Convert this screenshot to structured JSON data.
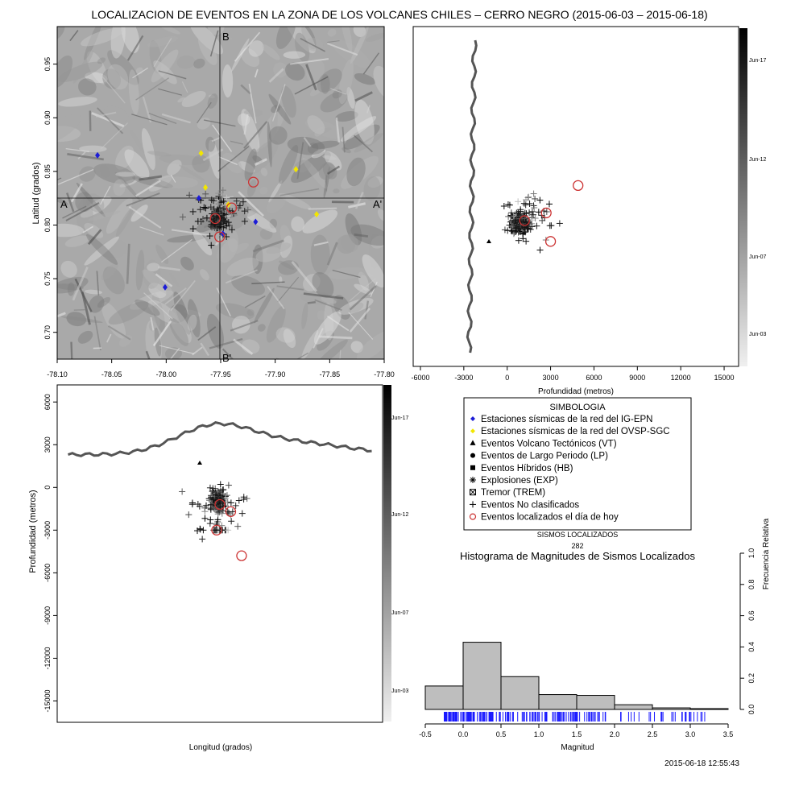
{
  "title": "LOCALIZACION DE EVENTOS EN LA ZONA DE LOS VOLCANES CHILES – CERRO NEGRO (2015-06-03 – 2015-06-18)",
  "timestamp": "2015-06-18 12:55:43",
  "colors": {
    "ig_epn": "#1c1cd6",
    "ovsp_sgc": "#f2e600",
    "today": "#cc3333",
    "hist_fill": "#bebebe",
    "rug": "#1a1aff",
    "terrain": "#7a7a7a"
  },
  "map": {
    "ylabel": "Latitud (grados)",
    "xticks": [
      "-78.10",
      "-78.05",
      "-78.00",
      "-77.95",
      "-77.90",
      "-77.85",
      "-77.80"
    ],
    "yticks": [
      "0.70",
      "0.75",
      "0.80",
      "0.85",
      "0.90",
      "0.95"
    ],
    "section_labels": {
      "a": "A",
      "a_prime": "A'",
      "b": "B",
      "b_prime": "B'"
    },
    "xlim": [
      -78.1,
      -77.8
    ],
    "ylim": [
      0.675,
      0.985
    ]
  },
  "depth_panel": {
    "xlabel": "Profundidad (metros)",
    "xticks": [
      "-6000",
      "-3000",
      "0",
      "3000",
      "6000",
      "9000",
      "12000",
      "15000"
    ],
    "xlim": [
      -6500,
      16000
    ],
    "colorbar_ticks": [
      "Jun-17",
      "Jun-12",
      "Jun-07",
      "Jun-03"
    ]
  },
  "section_panel": {
    "xlabel": "Longitud (grados)",
    "ylabel": "Profundidad (metros)",
    "yticks": [
      "6000",
      "3000",
      "0",
      "-3000",
      "-6000",
      "-9000",
      "-12000",
      "-15000"
    ],
    "ylim": [
      -16500,
      7200
    ],
    "colorbar_ticks": [
      "Jun-17",
      "Jun-12",
      "Jun-07",
      "Jun-03"
    ]
  },
  "legend": {
    "title": "SIMBOLOGIA",
    "items": [
      {
        "label": "Estaciones sísmicas de la red del IG-EPN",
        "symbol": "diamond-blue-icon"
      },
      {
        "label": "Estaciones sísmicas de la red del OVSP-SGC",
        "symbol": "diamond-yellow-icon"
      },
      {
        "label": "Eventos Volcano Tectónicos (VT)",
        "symbol": "triangle-icon"
      },
      {
        "label": "Eventos de Largo Periodo (LP)",
        "symbol": "circle-icon"
      },
      {
        "label": "Eventos Híbridos (HB)",
        "symbol": "square-icon"
      },
      {
        "label": "Explosiones (EXP)",
        "symbol": "asterisk-icon"
      },
      {
        "label": "Tremor (TREM)",
        "symbol": "boxed-cross-icon"
      },
      {
        "label": "Eventos No clasificados",
        "symbol": "plus-icon"
      },
      {
        "label": "Eventos localizados el día de hoy",
        "symbol": "red-ring-icon"
      }
    ]
  },
  "counter": {
    "label": "SISMOS LOCALIZADOS",
    "value": "282"
  },
  "chart_data": [
    {
      "type": "scatter",
      "name": "epicenter-map",
      "ylabel": "Latitud (grados)",
      "xlim": [
        -78.1,
        -77.8
      ],
      "ylim": [
        0.675,
        0.985
      ],
      "stations_ig_epn": [
        [
          -78.063,
          0.865
        ],
        [
          -77.97,
          0.825
        ],
        [
          -77.948,
          0.792
        ],
        [
          -77.918,
          0.803
        ],
        [
          -78.001,
          0.742
        ]
      ],
      "stations_ovsp_sgc": [
        [
          -77.968,
          0.867
        ],
        [
          -77.881,
          0.852
        ],
        [
          -77.862,
          0.81
        ],
        [
          -77.964,
          0.835
        ],
        [
          -77.943,
          0.819
        ]
      ],
      "events_today": [
        [
          -77.92,
          0.84
        ],
        [
          -77.955,
          0.806
        ],
        [
          -77.951,
          0.789
        ],
        [
          -77.94,
          0.816
        ]
      ]
    },
    {
      "type": "scatter",
      "name": "latitude-vs-depth",
      "xlabel": "Profundidad (metros)",
      "xlim": [
        -6500,
        16000
      ],
      "events_today": [
        [
          1200,
          0.808
        ],
        [
          2700,
          0.815
        ],
        [
          3000,
          0.789
        ],
        [
          4900,
          0.84
        ]
      ]
    },
    {
      "type": "scatter",
      "name": "depth-vs-longitude",
      "xlabel": "Longitud (grados)",
      "ylabel": "Profundidad (metros)",
      "ylim": [
        -16500,
        7200
      ],
      "events_today": [
        [
          -77.95,
          -1200
        ],
        [
          -77.953,
          -3000
        ],
        [
          -77.94,
          -1700
        ],
        [
          -77.93,
          -4800
        ]
      ]
    },
    {
      "type": "bar",
      "name": "magnitude-histogram",
      "title": "Histograma de Magnitudes de Sismos Localizados",
      "xlabel": "Magnitud",
      "ylabel": "Frecuencia Relativa",
      "xticks": [
        "-0.5",
        "0.0",
        "0.5",
        "1.0",
        "1.5",
        "2.0",
        "2.5",
        "3.0",
        "3.5"
      ],
      "yticks": [
        "0.0",
        "0.2",
        "0.4",
        "0.6",
        "0.8",
        "1.0"
      ],
      "xlim": [
        -0.5,
        3.5
      ],
      "ylim": [
        0,
        1
      ],
      "bins": [
        [
          -0.5,
          0.0
        ],
        [
          0.0,
          0.5
        ],
        [
          0.5,
          1.0
        ],
        [
          1.0,
          1.5
        ],
        [
          1.5,
          2.0
        ],
        [
          2.0,
          2.5
        ],
        [
          2.5,
          3.0
        ],
        [
          3.0,
          3.5
        ]
      ],
      "values": [
        0.15,
        0.43,
        0.21,
        0.095,
        0.09,
        0.03,
        0.01,
        0.005
      ]
    }
  ]
}
